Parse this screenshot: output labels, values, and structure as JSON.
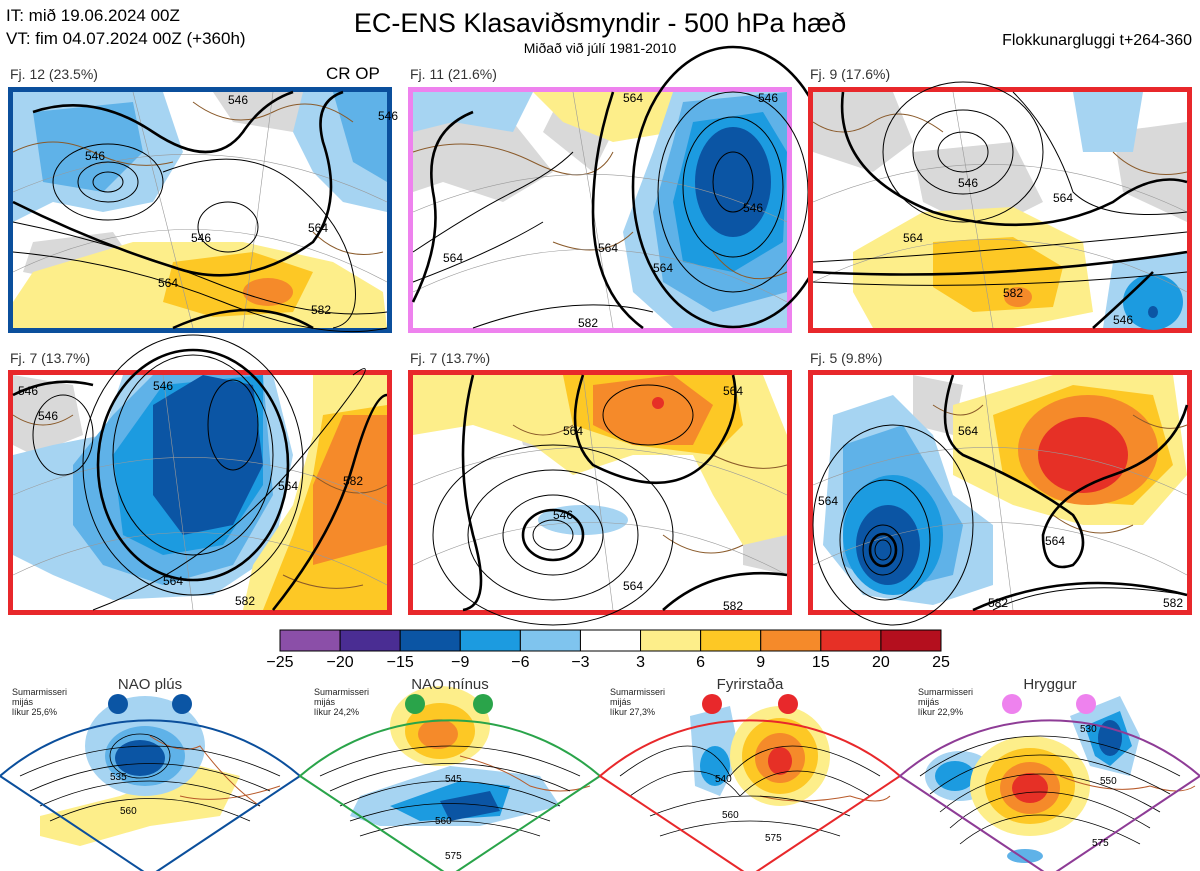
{
  "header": {
    "it_line": "IT: mið 19.06.2024 00Z",
    "vt_line": "VT: fim 04.07.2024 00Z  (+360h)",
    "title": "EC-ENS Klasaviðsmyndir - 500 hPa hæð",
    "subtitle": "Miðað við júlí 1981-2010",
    "window": "Flokkunargluggi t+264-360"
  },
  "clusters": [
    {
      "label": "Fj. 12 (23.5%)",
      "extra": "CR OP",
      "border": "#0b4f9c"
    },
    {
      "label": "Fj. 11 (21.6%)",
      "extra": "",
      "border": "#ee82ee"
    },
    {
      "label": "Fj. 9 (17.6%)",
      "extra": "",
      "border": "#e8282b"
    },
    {
      "label": "Fj. 7 (13.7%)",
      "extra": "",
      "border": "#e8282b"
    },
    {
      "label": "Fj. 7 (13.7%)",
      "extra": "",
      "border": "#e8282b"
    },
    {
      "label": "Fj. 5 (9.8%)",
      "extra": "",
      "border": "#e8282b"
    }
  ],
  "contour_labels": {
    "p1": [
      "546",
      "546",
      "546",
      "564",
      "564",
      "582",
      "546"
    ],
    "p2": [
      "564",
      "564",
      "564",
      "546",
      "564",
      "582",
      "546"
    ],
    "p3": [
      "546",
      "564",
      "582",
      "546",
      "564"
    ],
    "p4": [
      "546",
      "546",
      "546",
      "564",
      "582",
      "564",
      "582"
    ],
    "p5": [
      "564",
      "546",
      "564",
      "564",
      "582"
    ],
    "p6": [
      "564",
      "564",
      "564",
      "582",
      "582"
    ]
  },
  "colorbar": {
    "colors": [
      "#8b4fa8",
      "#4a2d93",
      "#0b55a4",
      "#1c9be0",
      "#7fc4ee",
      "#ffffff",
      "#fdee8a",
      "#fdc825",
      "#f58a2a",
      "#e63026",
      "#b40f1e"
    ],
    "ticks": [
      "−25",
      "−20",
      "−15",
      "−9",
      "−6",
      "−3",
      "3",
      "6",
      "9",
      "15",
      "20",
      "25"
    ]
  },
  "regimes": [
    {
      "name": "NAO plús",
      "season": "Sumarmisseri",
      "mean": "mijás",
      "prob": "líkur 25,6%",
      "dot": "#0b55a4",
      "frame": "#0b4f9c",
      "labels": [
        "535",
        "560"
      ]
    },
    {
      "name": "NAO mínus",
      "season": "Sumarmisseri",
      "mean": "mijás",
      "prob": "líkur 24,2%",
      "dot": "#2aa44a",
      "frame": "#2aa44a",
      "labels": [
        "545",
        "560",
        "575"
      ]
    },
    {
      "name": "Fyrirstaða",
      "season": "Sumarmisseri",
      "mean": "mijás",
      "prob": "líkur 27,3%",
      "dot": "#e8282b",
      "frame": "#e8282b",
      "labels": [
        "540",
        "560",
        "575"
      ]
    },
    {
      "name": "Hryggur",
      "season": "Sumarmisseri",
      "mean": "mijás",
      "prob": "líkur 22,9%",
      "dot": "#ee82ee",
      "frame": "#8e3c96",
      "labels": [
        "530",
        "550",
        "575"
      ]
    }
  ]
}
